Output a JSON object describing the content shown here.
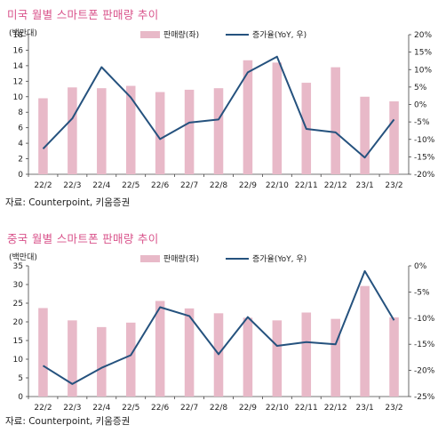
{
  "charts": [
    {
      "title": "미국 월별 스마트폰 판매량 추이",
      "source": "자료: Counterpoint, 키움증권",
      "unit_label": "(백만대)",
      "legend": {
        "bar_label": "판매량(좌)",
        "line_label": "증가율(YoY, 우)"
      }
    },
    {
      "title": "중국 월별 스마트폰 판매량 추이",
      "source": "자료: Counterpoint, 키움증권",
      "unit_label": "(백만대)",
      "legend": {
        "bar_label": "판매량(좌)",
        "line_label": "증가율(YoY, 우)"
      }
    }
  ],
  "colors": {
    "bar": "#e8b9c8",
    "line": "#25527e",
    "title": "#d9538b"
  },
  "chart_data": [
    {
      "type": "bar",
      "title": "미국 월별 스마트폰 판매량 추이",
      "categories": [
        "22/2",
        "22/3",
        "22/4",
        "22/5",
        "22/6",
        "22/7",
        "22/8",
        "22/9",
        "22/10",
        "22/11",
        "22/12",
        "23/1",
        "23/2"
      ],
      "series": [
        {
          "name": "판매량(좌)",
          "type": "bar",
          "axis": "left",
          "values": [
            9.8,
            11.2,
            11.1,
            11.4,
            10.6,
            10.9,
            11.1,
            14.7,
            14.4,
            11.8,
            13.8,
            10.0,
            9.4
          ]
        },
        {
          "name": "증가율(YoY, 우)",
          "type": "line",
          "axis": "right",
          "values": [
            -12.7,
            -4.0,
            10.7,
            2.0,
            -9.9,
            -5.2,
            -4.3,
            9.2,
            13.7,
            -7.0,
            -8.0,
            -15.2,
            -4.3
          ]
        }
      ],
      "ylabel_left": "(백만대)",
      "ylim_left": [
        0,
        18
      ],
      "yticks_left": [
        0,
        2,
        4,
        6,
        8,
        10,
        12,
        14,
        16,
        18
      ],
      "ylim_right": [
        -20,
        20
      ],
      "yticks_right": [
        "-20%",
        "-15%",
        "-10%",
        "-5%",
        "0%",
        "5%",
        "10%",
        "15%",
        "20%"
      ],
      "legend": "top"
    },
    {
      "type": "bar",
      "title": "중국 월별 스마트폰 판매량 추이",
      "categories": [
        "22/2",
        "22/3",
        "22/4",
        "22/5",
        "22/6",
        "22/7",
        "22/8",
        "22/9",
        "22/10",
        "22/11",
        "22/12",
        "23/1",
        "23/2"
      ],
      "series": [
        {
          "name": "판매량(좌)",
          "type": "bar",
          "axis": "left",
          "values": [
            23.7,
            20.4,
            18.6,
            19.8,
            25.6,
            23.6,
            22.3,
            21.1,
            20.4,
            22.5,
            20.8,
            29.6,
            21.2
          ]
        },
        {
          "name": "증가율(YoY, 우)",
          "type": "line",
          "axis": "right",
          "values": [
            -19.1,
            -22.6,
            -19.5,
            -17.1,
            -7.9,
            -9.6,
            -16.9,
            -9.8,
            -15.3,
            -14.6,
            -15.0,
            -1.0,
            -10.4
          ]
        }
      ],
      "ylabel_left": "(백만대)",
      "ylim_left": [
        0,
        35
      ],
      "yticks_left": [
        0,
        5,
        10,
        15,
        20,
        25,
        30,
        35
      ],
      "ylim_right": [
        -25,
        0
      ],
      "yticks_right": [
        "-25%",
        "-20%",
        "-15%",
        "-10%",
        "-5%",
        "0%"
      ],
      "legend": "top"
    }
  ]
}
